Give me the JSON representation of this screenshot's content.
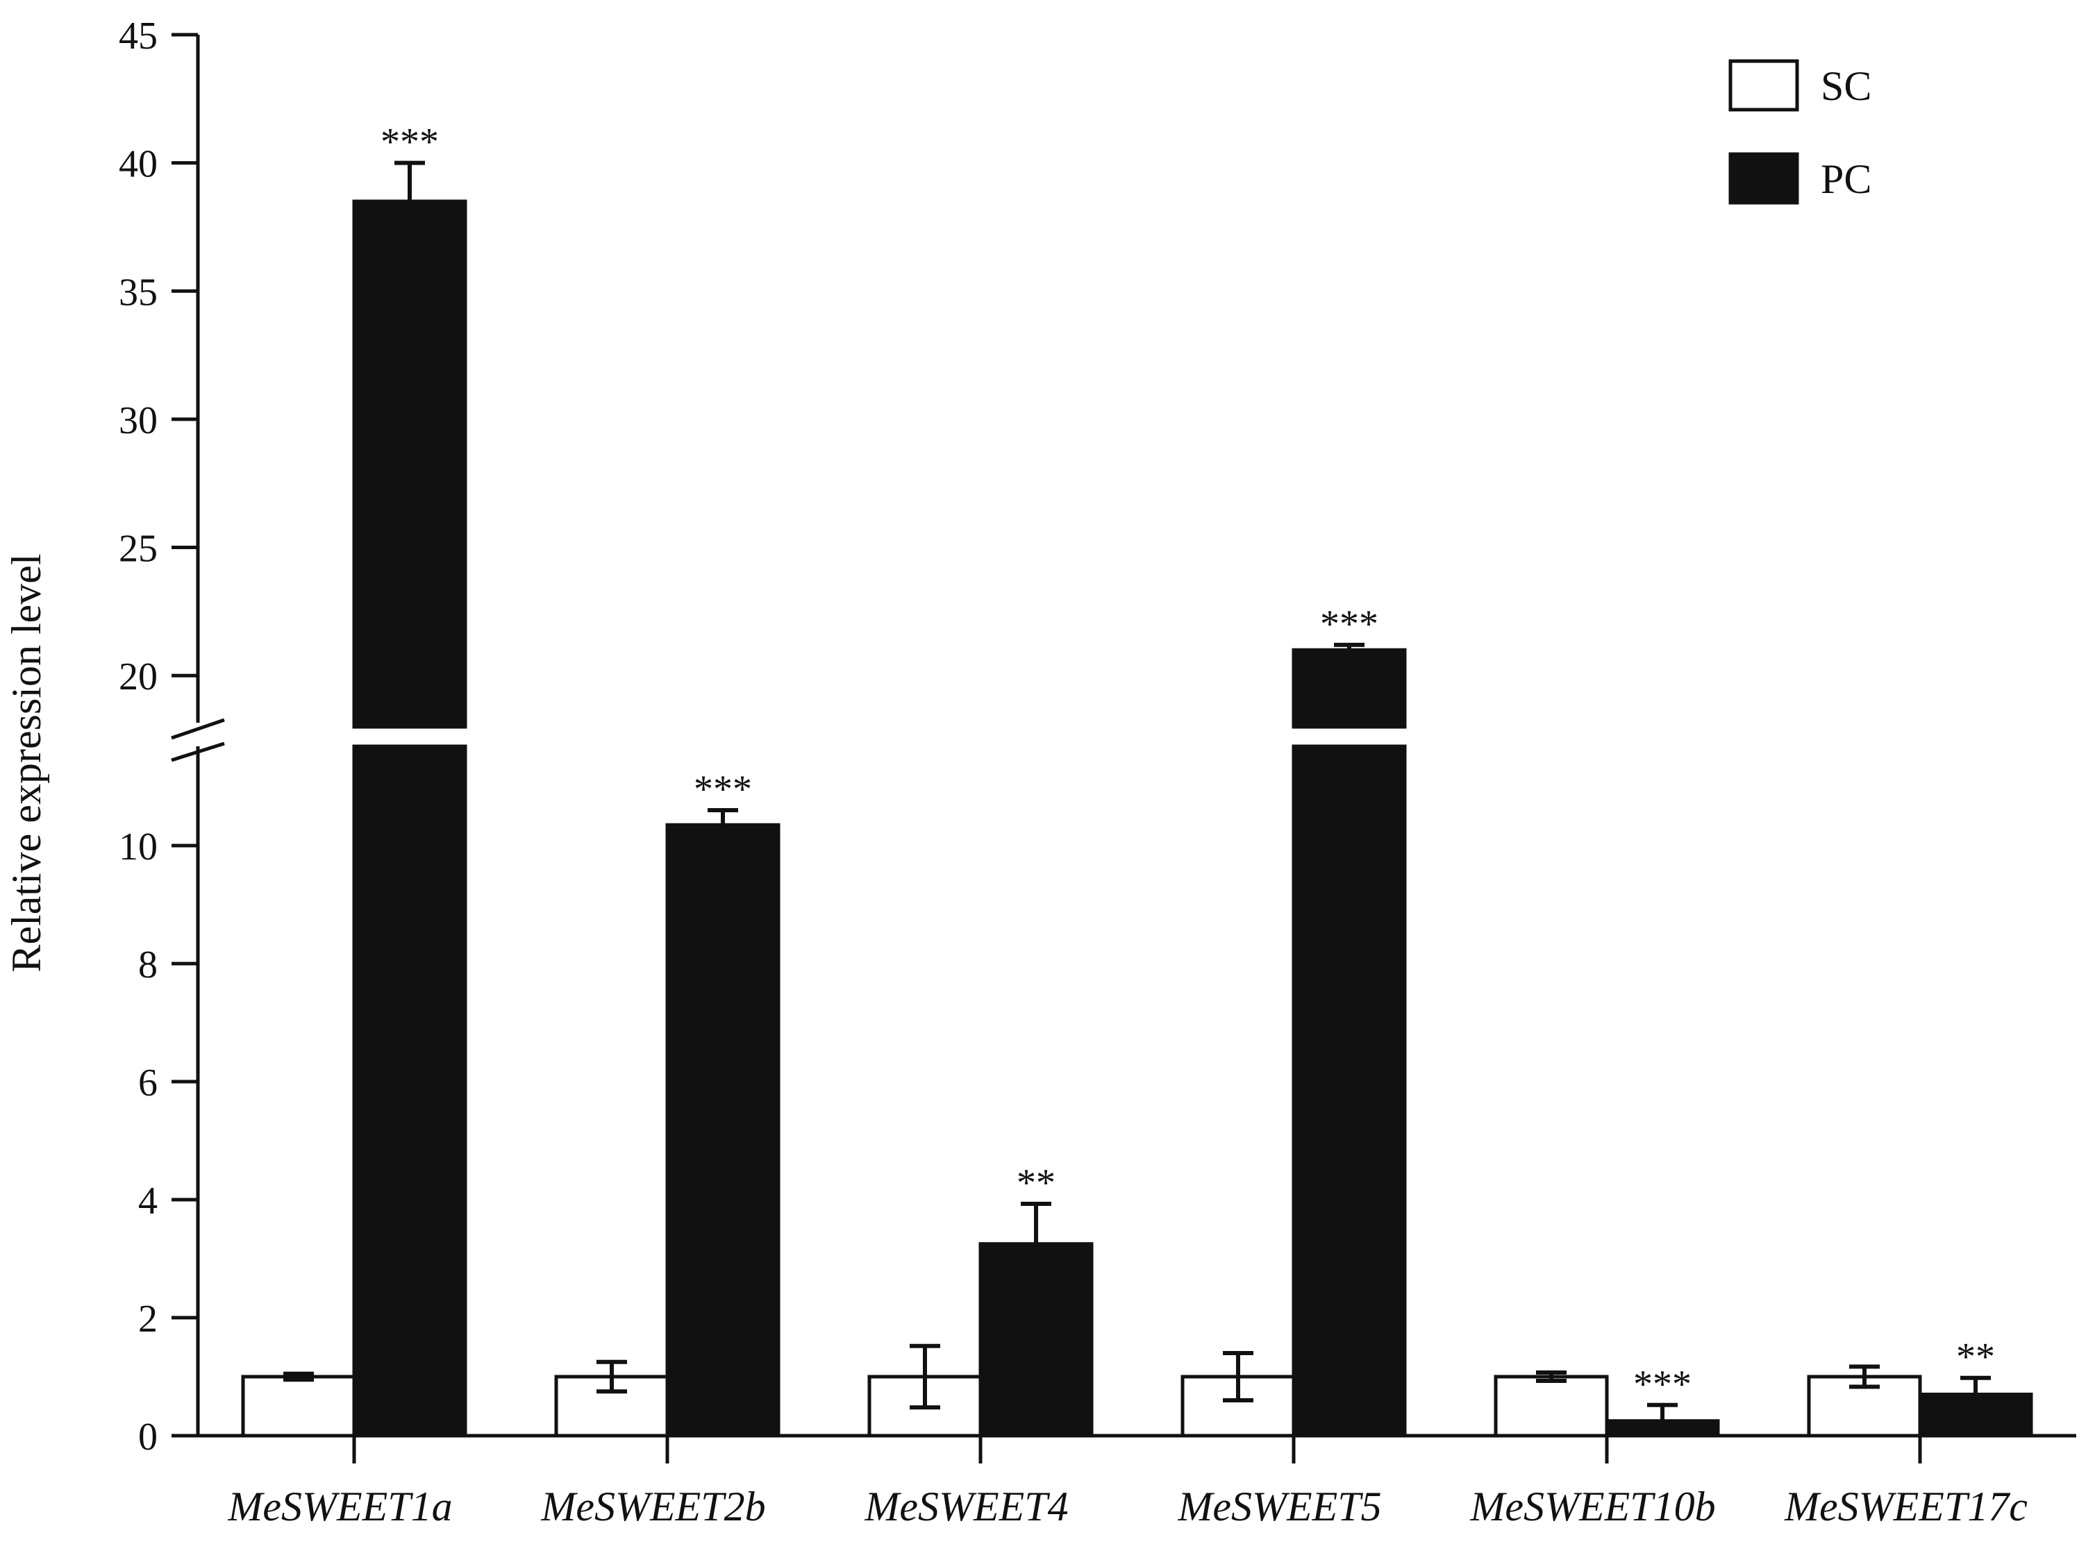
{
  "chart_data": {
    "type": "bar",
    "title": "",
    "xlabel": "",
    "ylabel": "Relative expression level",
    "ylim_lower": [
      0,
      12
    ],
    "ylim_upper": [
      18,
      45
    ],
    "axis_break": [
      12,
      18
    ],
    "yticks_lower": [
      "0",
      "2",
      "4",
      "6",
      "8",
      "10"
    ],
    "yticks_upper": [
      "20",
      "25",
      "30",
      "35",
      "40",
      "45"
    ],
    "categories": [
      "MeSWEET1a",
      "MeSWEET2b",
      "MeSWEET4",
      "MeSWEET5",
      "MeSWEET10b",
      "MeSWEET17c"
    ],
    "series": [
      {
        "name": "SC",
        "fill": "#ffffff",
        "values": [
          1.0,
          1.0,
          1.0,
          1.0,
          1.0,
          1.0
        ],
        "errors": [
          0.05,
          0.25,
          0.52,
          0.4,
          0.07,
          0.17
        ],
        "significance": [
          "",
          "",
          "",
          "",
          "",
          ""
        ]
      },
      {
        "name": "PC",
        "fill": "#111111",
        "values": [
          38.5,
          10.35,
          3.25,
          21.0,
          0.25,
          0.7
        ],
        "errors": [
          1.5,
          0.25,
          0.68,
          0.2,
          0.27,
          0.28
        ],
        "significance": [
          "***",
          "***",
          "**",
          "***",
          "***",
          "**"
        ]
      }
    ],
    "legend": {
      "position": "top-right",
      "entries": [
        "SC",
        "PC"
      ]
    },
    "grid": false
  }
}
